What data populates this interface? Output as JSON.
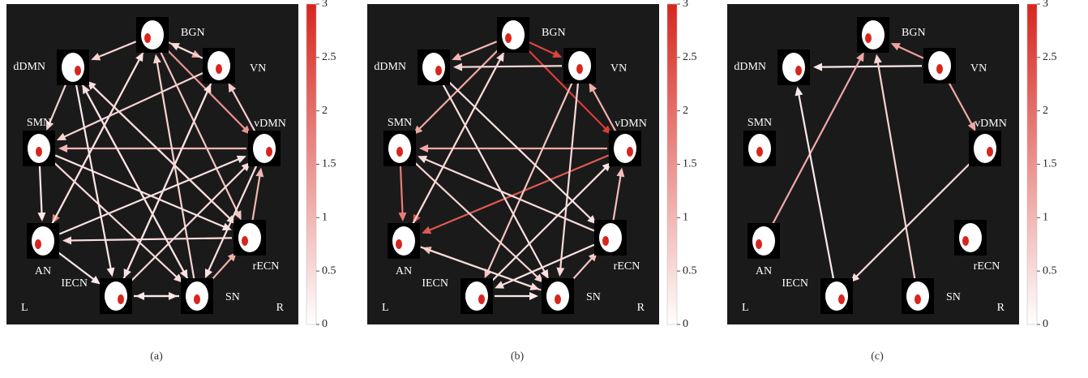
{
  "nodes": [
    "BGN",
    "VN",
    "vDMN",
    "rECN",
    "SN",
    "IECN",
    "AN",
    "SMN",
    "dDMN"
  ],
  "side_labels": [
    "L",
    "R"
  ],
  "colorbar": {
    "lim": [
      0,
      3
    ],
    "ticks": [
      0,
      0.5,
      1,
      1.5,
      2,
      2.5,
      3
    ],
    "colors": [
      "#ffffff",
      "#d7261e"
    ]
  },
  "panels": [
    {
      "caption": "(a)",
      "edges": [
        [
          0,
          8,
          0.6
        ],
        [
          0,
          1,
          1.2
        ],
        [
          0,
          2,
          1.5
        ],
        [
          0,
          6,
          1.8
        ],
        [
          0,
          3,
          0.8
        ],
        [
          1,
          0,
          0.5
        ],
        [
          1,
          7,
          0.6
        ],
        [
          1,
          5,
          0.4
        ],
        [
          2,
          7,
          1.0
        ],
        [
          2,
          1,
          0.7
        ],
        [
          2,
          4,
          0.4
        ],
        [
          3,
          2,
          1.0
        ],
        [
          3,
          8,
          0.4
        ],
        [
          3,
          6,
          0.5
        ],
        [
          4,
          3,
          1.1
        ],
        [
          4,
          5,
          0.3
        ],
        [
          4,
          0,
          0.6
        ],
        [
          4,
          8,
          0.5
        ],
        [
          5,
          4,
          0.3
        ],
        [
          5,
          1,
          0.4
        ],
        [
          5,
          2,
          0.5
        ],
        [
          6,
          5,
          0.3
        ],
        [
          6,
          0,
          0.4
        ],
        [
          6,
          2,
          0.4
        ],
        [
          7,
          6,
          0.3
        ],
        [
          7,
          4,
          0.5
        ],
        [
          7,
          3,
          0.4
        ],
        [
          8,
          7,
          0.6
        ],
        [
          8,
          3,
          0.5
        ],
        [
          8,
          4,
          0.4
        ],
        [
          8,
          5,
          0.3
        ]
      ]
    },
    {
      "caption": "(b)",
      "edges": [
        [
          0,
          1,
          2.6
        ],
        [
          0,
          2,
          2.7
        ],
        [
          0,
          8,
          1.0
        ],
        [
          0,
          7,
          1.2
        ],
        [
          0,
          6,
          2.4
        ],
        [
          2,
          7,
          1.2
        ],
        [
          2,
          6,
          2.3
        ],
        [
          1,
          5,
          0.8
        ],
        [
          1,
          4,
          0.5
        ],
        [
          7,
          6,
          1.8
        ],
        [
          7,
          4,
          0.6
        ],
        [
          3,
          2,
          0.9
        ],
        [
          4,
          3,
          0.8
        ],
        [
          4,
          6,
          1.0
        ],
        [
          5,
          4,
          0.3
        ],
        [
          3,
          5,
          0.4
        ],
        [
          6,
          4,
          0.5
        ],
        [
          8,
          3,
          0.4
        ],
        [
          8,
          4,
          0.4
        ],
        [
          2,
          1,
          1.1
        ],
        [
          5,
          2,
          0.4
        ],
        [
          6,
          0,
          0.5
        ],
        [
          3,
          7,
          0.5
        ],
        [
          1,
          8,
          0.6
        ]
      ]
    },
    {
      "caption": "(c)",
      "edges": [
        [
          1,
          0,
          1.3
        ],
        [
          1,
          8,
          0.3
        ],
        [
          1,
          2,
          1.2
        ],
        [
          6,
          0,
          1.2
        ],
        [
          5,
          8,
          0.3
        ],
        [
          4,
          0,
          0.6
        ],
        [
          2,
          5,
          0.5
        ]
      ]
    }
  ]
}
